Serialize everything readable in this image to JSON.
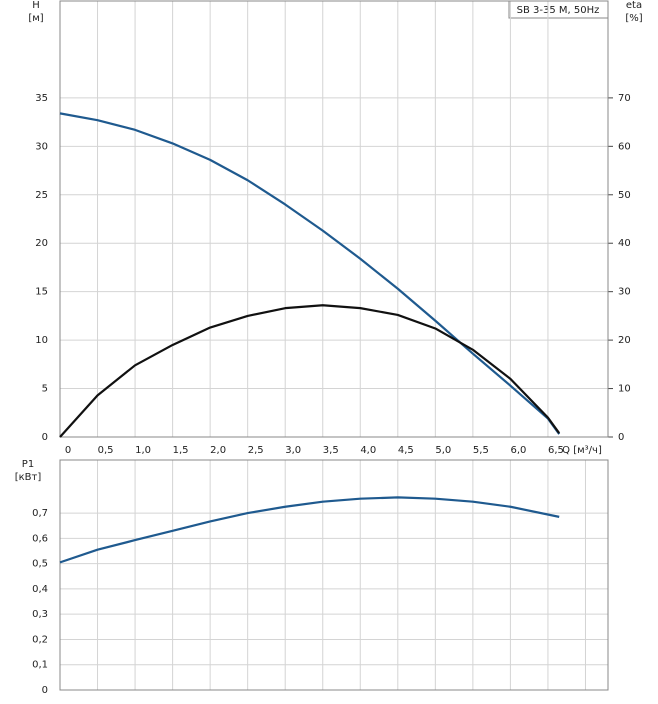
{
  "chart_data": [
    {
      "type": "line",
      "title": "SB 3-35 M, 50Hz",
      "y_label": "H",
      "y_unit": "[м]",
      "y2_label": "eta",
      "y2_unit": "[%]",
      "x_label": "Q [м³/ч]",
      "x": [
        0,
        0.5,
        1.0,
        1.5,
        2.0,
        2.5,
        3.0,
        3.5,
        4.0,
        4.5,
        5.0,
        5.5,
        6.0,
        6.5,
        6.65
      ],
      "series": [
        {
          "color": "#1f5a8f",
          "values": [
            33.4,
            32.7,
            31.7,
            30.3,
            28.6,
            26.5,
            24.0,
            21.3,
            18.4,
            15.3,
            12.0,
            8.6,
            5.3,
            1.9,
            0.3
          ]
        },
        {
          "color": "#111111",
          "axis": "y2",
          "values": [
            0,
            8.6,
            14.8,
            19.0,
            22.6,
            25.0,
            26.6,
            27.2,
            26.6,
            25.2,
            22.4,
            18.0,
            12.0,
            4.0,
            0.8
          ]
        }
      ],
      "xlim": [
        0,
        7.3
      ],
      "xticks": [
        0,
        {
          "value": 0.5,
          "label": "0,5"
        },
        {
          "value": 1.0,
          "label": "1,0"
        },
        {
          "value": 1.5,
          "label": "1,5"
        },
        {
          "value": 2.0,
          "label": "2,0"
        },
        {
          "value": 2.5,
          "label": "2,5"
        },
        {
          "value": 3.0,
          "label": "3,0"
        },
        {
          "value": 3.5,
          "label": "3,5"
        },
        {
          "value": 4.0,
          "label": "4,0"
        },
        {
          "value": 4.5,
          "label": "4,5"
        },
        {
          "value": 5.0,
          "label": "5,0"
        },
        {
          "value": 5.5,
          "label": "5,5"
        },
        {
          "value": 6.0,
          "label": "6,0"
        },
        {
          "value": 6.5,
          "label": "6,5"
        }
      ],
      "ylim": [
        0,
        45
      ],
      "yticks": [
        0,
        5,
        10,
        15,
        20,
        25,
        30,
        35
      ],
      "y2lim": [
        0,
        90
      ],
      "y2ticks": [
        0,
        10,
        20,
        30,
        40,
        50,
        60,
        70
      ],
      "grid": true
    },
    {
      "type": "line",
      "y_label": "P1",
      "y_unit": "[кВт]",
      "x": [
        0,
        0.5,
        1.0,
        1.5,
        2.0,
        2.5,
        3.0,
        3.5,
        4.0,
        4.5,
        5.0,
        5.5,
        6.0,
        6.65
      ],
      "series": [
        {
          "color": "#1f5a8f",
          "values": [
            0.505,
            0.555,
            0.593,
            0.63,
            0.667,
            0.7,
            0.725,
            0.745,
            0.757,
            0.762,
            0.757,
            0.745,
            0.725,
            0.685
          ]
        }
      ],
      "xlim": [
        0,
        7.3
      ],
      "xticks": [
        0,
        0.5,
        1.0,
        1.5,
        2.0,
        2.5,
        3.0,
        3.5,
        4.0,
        4.5,
        5.0,
        5.5,
        6.0,
        6.5,
        7.0
      ],
      "hide_x_labels": true,
      "ylim": [
        0,
        0.91
      ],
      "yticks": [
        0,
        {
          "value": 0.1,
          "label": "0,1"
        },
        {
          "value": 0.2,
          "label": "0,2"
        },
        {
          "value": 0.3,
          "label": "0,3"
        },
        {
          "value": 0.4,
          "label": "0,4"
        },
        {
          "value": 0.5,
          "label": "0,5"
        },
        {
          "value": 0.6,
          "label": "0,6"
        },
        {
          "value": 0.7,
          "label": "0,7"
        }
      ],
      "grid": true
    }
  ]
}
